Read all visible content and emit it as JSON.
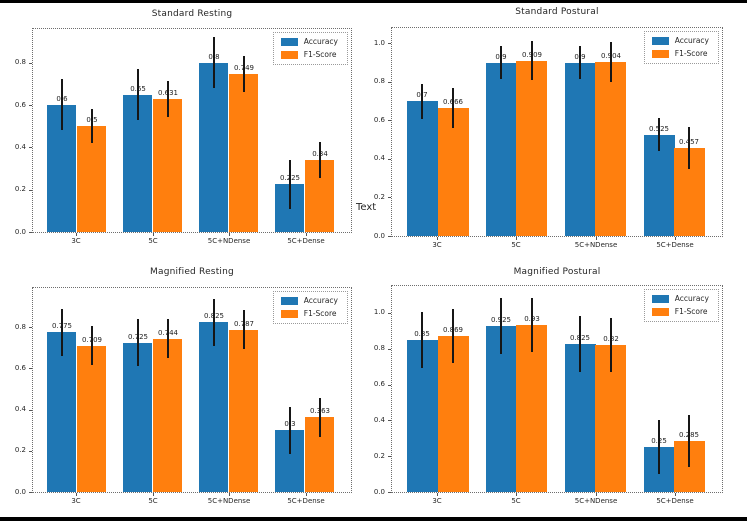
{
  "figure": {
    "background": "#ffffff",
    "edge_color": "#000000",
    "accuracy_color": "#1f77b4",
    "f1_color": "#ff7f0e",
    "errorbar_color": "#161616"
  },
  "annotations": {
    "stray_text": "Text"
  },
  "chart_data": [
    {
      "type": "bar",
      "title": "Standard Resting",
      "categories": [
        "3C",
        "5C",
        "5C+NDense",
        "5C+Dense"
      ],
      "series": [
        {
          "name": "Accuracy",
          "color": "#1f77b4",
          "values": [
            0.6,
            0.65,
            0.8,
            0.225
          ],
          "labels": [
            "0.6",
            "0.65",
            "0.8",
            "0.225"
          ],
          "errors": [
            0.12,
            0.12,
            0.12,
            0.115
          ]
        },
        {
          "name": "F1-Score",
          "color": "#ff7f0e",
          "values": [
            0.5,
            0.631,
            0.749,
            0.34
          ],
          "labels": [
            "0.5",
            "0.631",
            "0.749",
            "0.34"
          ],
          "errors": [
            0.08,
            0.085,
            0.085,
            0.085
          ]
        }
      ],
      "yticks": [
        "0.0",
        "0.2",
        "0.4",
        "0.6",
        "0.8"
      ],
      "ylim": [
        0,
        0.96
      ],
      "grid": false,
      "legend_position": "upper right"
    },
    {
      "type": "bar",
      "title": "Standard Postural",
      "categories": [
        "3C",
        "5C",
        "5C+NDense",
        "5C+Dense"
      ],
      "series": [
        {
          "name": "Accuracy",
          "color": "#1f77b4",
          "values": [
            0.7,
            0.9,
            0.9,
            0.525
          ],
          "labels": [
            "0.7",
            "0.9",
            "0.9",
            "0.525"
          ],
          "errors": [
            0.09,
            0.085,
            0.085,
            0.085
          ]
        },
        {
          "name": "F1-Score",
          "color": "#ff7f0e",
          "values": [
            0.666,
            0.909,
            0.904,
            0.457
          ],
          "labels": [
            "0.666",
            "0.909",
            "0.904",
            "0.457"
          ],
          "errors": [
            0.105,
            0.1,
            0.105,
            0.11
          ]
        }
      ],
      "yticks": [
        "0.0",
        "0.2",
        "0.4",
        "0.6",
        "0.8",
        "1.0"
      ],
      "ylim": [
        0,
        1.08
      ],
      "grid": false,
      "legend_position": "upper right"
    },
    {
      "type": "bar",
      "title": "Magnified Resting",
      "categories": [
        "3C",
        "5C",
        "5C+NDense",
        "5C+Dense"
      ],
      "series": [
        {
          "name": "Accuracy",
          "color": "#1f77b4",
          "values": [
            0.775,
            0.725,
            0.825,
            0.3
          ],
          "labels": [
            "0.775",
            "0.725",
            "0.825",
            "0.3"
          ],
          "errors": [
            0.115,
            0.115,
            0.115,
            0.115
          ]
        },
        {
          "name": "F1-Score",
          "color": "#ff7f0e",
          "values": [
            0.709,
            0.744,
            0.787,
            0.363
          ],
          "labels": [
            "0.709",
            "0.744",
            "0.787",
            "0.363"
          ],
          "errors": [
            0.095,
            0.095,
            0.095,
            0.095
          ]
        }
      ],
      "yticks": [
        "0.0",
        "0.2",
        "0.4",
        "0.6",
        "0.8"
      ],
      "ylim": [
        0,
        0.99
      ],
      "grid": false,
      "legend_position": "upper right"
    },
    {
      "type": "bar",
      "title": "Magnified Postural",
      "categories": [
        "3C",
        "5C",
        "5C+NDense",
        "5C+Dense"
      ],
      "series": [
        {
          "name": "Accuracy",
          "color": "#1f77b4",
          "values": [
            0.85,
            0.925,
            0.825,
            0.25
          ],
          "labels": [
            "0.85",
            "0.925",
            "0.825",
            "0.25"
          ],
          "errors": [
            0.155,
            0.155,
            0.155,
            0.15
          ]
        },
        {
          "name": "F1-Score",
          "color": "#ff7f0e",
          "values": [
            0.869,
            0.93,
            0.82,
            0.285
          ],
          "labels": [
            "0.869",
            "0.93",
            "0.82",
            "0.285"
          ],
          "errors": [
            0.15,
            0.15,
            0.15,
            0.145
          ]
        }
      ],
      "yticks": [
        "0.0",
        "0.2",
        "0.4",
        "0.6",
        "0.8",
        "1.0"
      ],
      "ylim": [
        0,
        1.15
      ],
      "grid": false,
      "legend_position": "upper right"
    }
  ]
}
